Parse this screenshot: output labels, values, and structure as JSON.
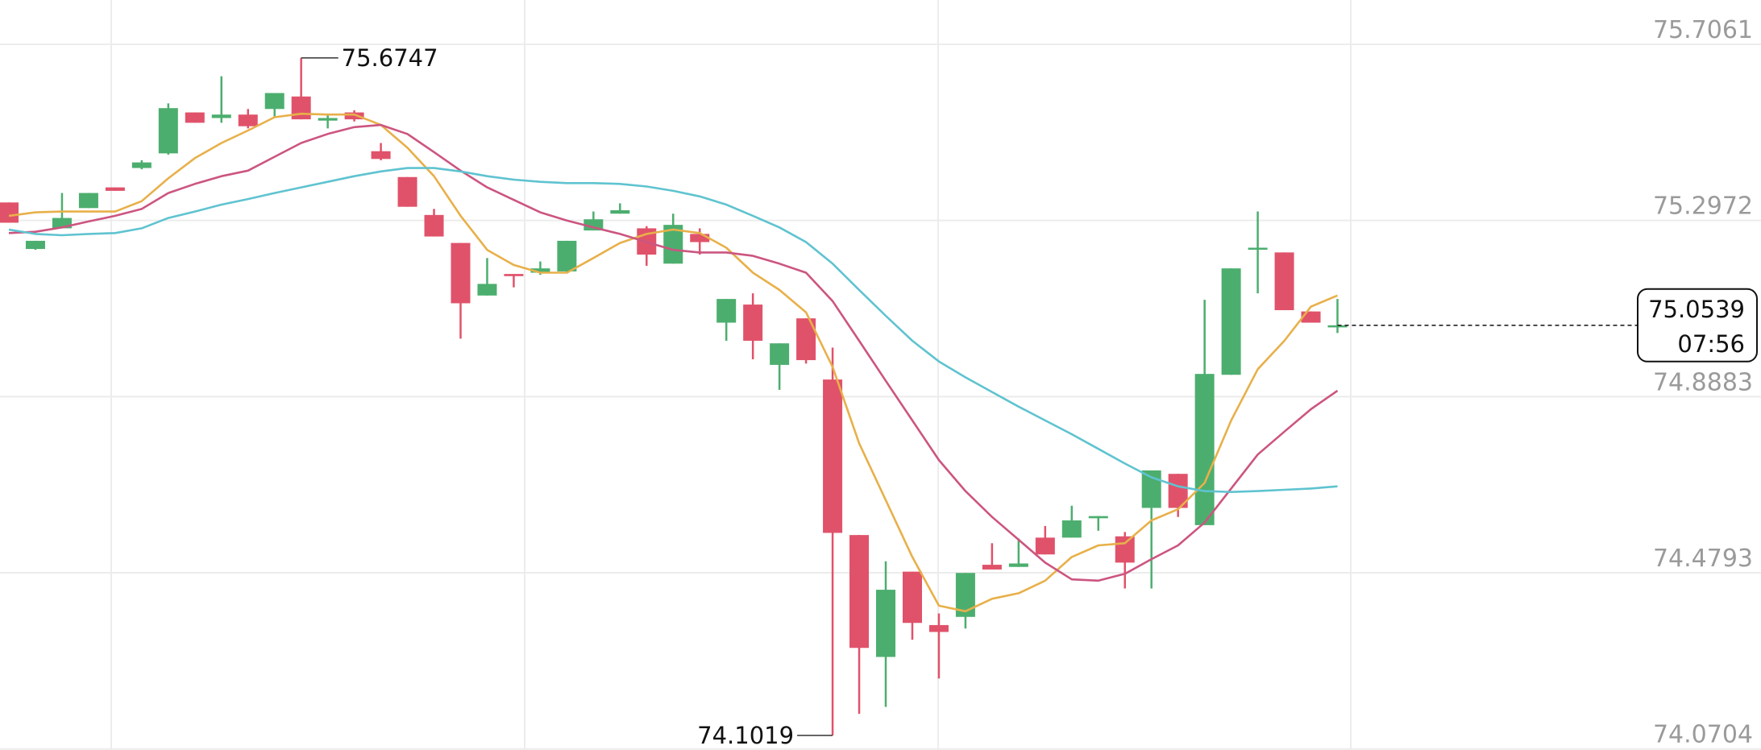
{
  "chart_data": {
    "type": "candlestick",
    "ylim": [
      74.068,
      75.809
    ],
    "yticks": [
      74.0704,
      74.4793,
      74.8883,
      75.2972,
      75.7061
    ],
    "grid": true,
    "up_color": "#4cae6e",
    "down_color": "#e0526a",
    "open": [
      75.339,
      75.231,
      75.279,
      75.326,
      75.374,
      75.419,
      75.453,
      75.548,
      75.535,
      75.543,
      75.556,
      75.585,
      75.529,
      75.548,
      75.458,
      75.398,
      75.31,
      75.245,
      75.123,
      75.173,
      75.176,
      75.179,
      75.274,
      75.313,
      75.279,
      75.197,
      75.266,
      75.06,
      75.102,
      74.962,
      75.07,
      74.928,
      74.567,
      74.284,
      74.482,
      74.358,
      74.377,
      74.498,
      74.493,
      74.561,
      74.561,
      74.606,
      74.564,
      74.63,
      74.709,
      74.59,
      74.939,
      75.231,
      75.223,
      75.086,
      75.049
    ],
    "high": [
      75.339,
      75.25,
      75.361,
      75.361,
      75.374,
      75.437,
      75.569,
      75.548,
      75.632,
      75.556,
      75.593,
      75.6747,
      75.545,
      75.553,
      75.477,
      75.398,
      75.324,
      75.245,
      75.21,
      75.173,
      75.202,
      75.25,
      75.318,
      75.337,
      75.284,
      75.313,
      75.279,
      75.115,
      75.128,
      75.012,
      75.07,
      75.002,
      74.567,
      74.506,
      74.482,
      74.385,
      74.479,
      74.548,
      74.559,
      74.588,
      74.635,
      74.611,
      74.574,
      74.717,
      74.709,
      75.113,
      75.186,
      75.318,
      75.223,
      75.086,
      75.115
    ],
    "low": [
      75.292,
      75.229,
      75.279,
      75.326,
      75.366,
      75.416,
      75.45,
      75.524,
      75.524,
      75.511,
      75.535,
      75.532,
      75.511,
      75.527,
      75.437,
      75.329,
      75.26,
      75.023,
      75.123,
      75.142,
      75.171,
      75.176,
      75.274,
      75.313,
      75.192,
      75.197,
      75.218,
      75.018,
      74.975,
      74.904,
      74.965,
      74.1019,
      74.152,
      74.168,
      74.324,
      74.234,
      74.35,
      74.487,
      74.493,
      74.522,
      74.561,
      74.577,
      74.443,
      74.443,
      74.609,
      74.59,
      74.939,
      75.128,
      75.089,
      75.06,
      75.036
    ],
    "close": [
      75.292,
      75.25,
      75.303,
      75.361,
      75.366,
      75.432,
      75.558,
      75.524,
      75.543,
      75.516,
      75.593,
      75.532,
      75.535,
      75.532,
      75.44,
      75.329,
      75.26,
      75.105,
      75.15,
      75.168,
      75.186,
      75.25,
      75.3,
      75.321,
      75.218,
      75.287,
      75.247,
      75.115,
      75.018,
      75.012,
      74.973,
      74.572,
      74.305,
      74.44,
      74.363,
      74.342,
      74.479,
      74.487,
      74.501,
      74.522,
      74.601,
      74.611,
      74.503,
      74.717,
      74.63,
      74.941,
      75.186,
      75.234,
      75.089,
      75.06,
      75.0539
    ],
    "series": [
      {
        "color": "#e8b04a",
        "values": [
          75.308,
          75.316,
          75.318,
          75.318,
          75.318,
          75.342,
          75.395,
          75.442,
          75.477,
          75.506,
          75.537,
          75.545,
          75.543,
          75.543,
          75.519,
          75.466,
          75.4,
          75.308,
          75.229,
          75.194,
          75.176,
          75.176,
          75.21,
          75.245,
          75.266,
          75.276,
          75.268,
          75.234,
          75.176,
          75.136,
          75.084,
          74.957,
          74.78,
          74.648,
          74.516,
          74.403,
          74.39,
          74.419,
          74.432,
          74.461,
          74.516,
          74.543,
          74.548,
          74.601,
          74.627,
          74.688,
          74.833,
          74.952,
          75.018,
          75.097,
          75.123
        ]
      },
      {
        "color": "#cc5580",
        "values": [
          75.268,
          75.271,
          75.281,
          75.295,
          75.308,
          75.324,
          75.361,
          75.382,
          75.4,
          75.413,
          75.445,
          75.477,
          75.498,
          75.514,
          75.519,
          75.498,
          75.456,
          75.413,
          75.374,
          75.345,
          75.316,
          75.297,
          75.281,
          75.266,
          75.247,
          75.229,
          75.223,
          75.223,
          75.215,
          75.197,
          75.176,
          75.11,
          75.018,
          74.925,
          74.833,
          74.741,
          74.669,
          74.609,
          74.556,
          74.503,
          74.464,
          74.461,
          74.477,
          74.511,
          74.543,
          74.596,
          74.675,
          74.754,
          74.807,
          74.859,
          74.902
        ]
      },
      {
        "color": "#5fc3d0",
        "values": [
          75.276,
          75.266,
          75.263,
          75.266,
          75.268,
          75.279,
          75.303,
          75.318,
          75.334,
          75.347,
          75.361,
          75.374,
          75.387,
          75.4,
          75.411,
          75.419,
          75.419,
          75.411,
          75.4,
          75.392,
          75.387,
          75.384,
          75.384,
          75.382,
          75.376,
          75.366,
          75.353,
          75.334,
          75.308,
          75.281,
          75.247,
          75.197,
          75.136,
          75.076,
          75.018,
          74.97,
          74.933,
          74.899,
          74.865,
          74.833,
          74.801,
          74.767,
          74.733,
          74.701,
          74.68,
          74.669,
          74.667,
          74.669,
          74.672,
          74.675,
          74.68
        ]
      }
    ],
    "countdown": "07:56"
  }
}
